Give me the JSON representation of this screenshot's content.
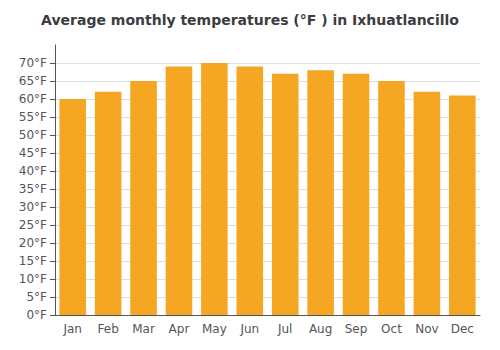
{
  "chart_data": {
    "type": "bar",
    "title": "Average monthly temperatures (°F ) in Ixhuatlancillo",
    "categories": [
      "Jan",
      "Feb",
      "Mar",
      "Apr",
      "May",
      "Jun",
      "Jul",
      "Aug",
      "Sep",
      "Oct",
      "Nov",
      "Dec"
    ],
    "values": [
      60,
      62,
      65,
      69,
      70,
      69,
      67,
      68,
      67,
      65,
      62,
      61
    ],
    "color": "#F5A623",
    "ylim": [
      0,
      75
    ],
    "yticks": [
      {
        "value": 0,
        "label": "0°F"
      },
      {
        "value": 5,
        "label": "5°F"
      },
      {
        "value": 10,
        "label": "10°F"
      },
      {
        "value": 15,
        "label": "15°F"
      },
      {
        "value": 20,
        "label": "20°F"
      },
      {
        "value": 25,
        "label": "25°F"
      },
      {
        "value": 30,
        "label": "30°F"
      },
      {
        "value": 35,
        "label": "35°F"
      },
      {
        "value": 40,
        "label": "40°F"
      },
      {
        "value": 45,
        "label": "45°F"
      },
      {
        "value": 50,
        "label": "50°F"
      },
      {
        "value": 55,
        "label": "55°F"
      },
      {
        "value": 60,
        "label": "60°F"
      },
      {
        "value": 65,
        "label": "65°F"
      },
      {
        "value": 70,
        "label": "70°F"
      }
    ],
    "grid": true
  }
}
